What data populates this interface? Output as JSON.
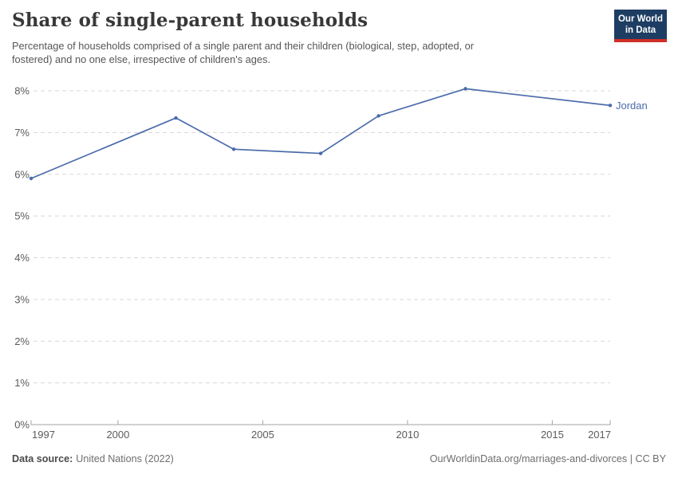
{
  "header": {
    "title": "Share of single-parent households",
    "subtitle_lines": [
      "Percentage of households comprised of a single parent and their children (biological, step, adopted, or",
      "fostered) and no one else, irrespective of children's ages."
    ]
  },
  "logo": {
    "line1": "Our World",
    "line2": "in Data",
    "bg_color": "#1d3d63",
    "accent_color": "#cf2e26"
  },
  "chart_data": {
    "type": "line",
    "title": "Share of single-parent households",
    "x": [
      1997,
      2002,
      2004,
      2007,
      2009,
      2012,
      2017
    ],
    "series": [
      {
        "name": "Jordan",
        "values": [
          5.9,
          7.35,
          6.6,
          6.5,
          7.4,
          8.05,
          7.65
        ],
        "color": "#4a6bab"
      }
    ],
    "xlim": [
      1997,
      2017
    ],
    "ylim": [
      0,
      8
    ],
    "yticks": [
      0,
      1,
      2,
      3,
      4,
      5,
      6,
      7,
      8
    ],
    "ytick_labels": [
      "0%",
      "1%",
      "2%",
      "3%",
      "4%",
      "5%",
      "6%",
      "7%",
      "8%"
    ],
    "xticks": [
      1997,
      2000,
      2005,
      2010,
      2015,
      2017
    ],
    "xtick_labels": [
      "1997",
      "2000",
      "2005",
      "2010",
      "2015",
      "2017"
    ],
    "grid": "horizontal-dashed",
    "legend_position": "line-end",
    "grid_color": "#d8d8d8",
    "axis_color": "#a3a3a3",
    "tick_text_color": "#5b5b5b"
  },
  "footer": {
    "source_label": "Data source:",
    "source_value": "United Nations (2022)",
    "credit": "OurWorldinData.org/marriages-and-divorces | CC BY"
  }
}
